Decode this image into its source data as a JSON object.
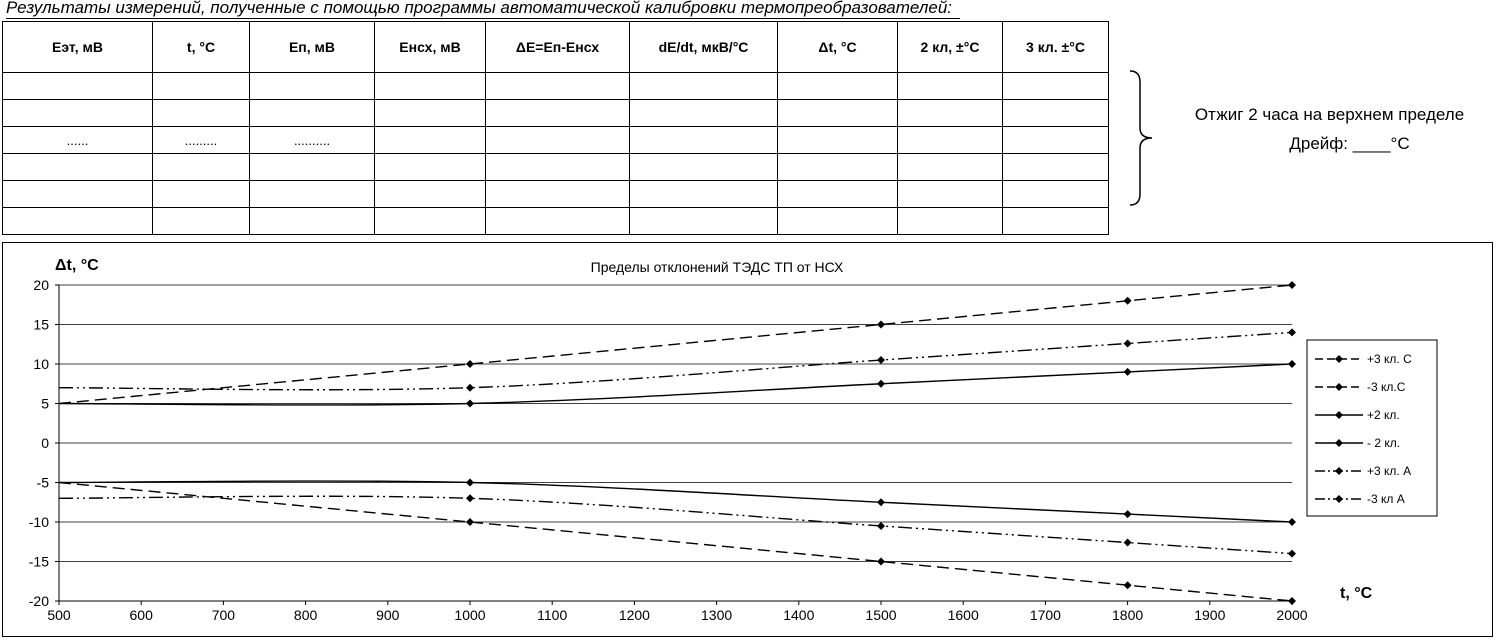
{
  "caption": "Результаты измерений, полученные с помощью программы автоматической калибровки термопреобразователей:",
  "table": {
    "headers": [
      "Еэт, мВ",
      "t, °С",
      "Еп, мВ",
      "Енсх, мВ",
      "ΔЕ=Еп-Енсх",
      "dE/dt, мкВ/°С",
      "Δt, °С",
      "2 кл, ±°С",
      "3 кл. ±°С"
    ],
    "rows": [
      [
        "",
        "",
        "",
        "",
        "",
        "",
        "",
        "",
        ""
      ],
      [
        "",
        "",
        "",
        "",
        "",
        "",
        "",
        "",
        ""
      ],
      [
        "......",
        ".........",
        "..........",
        "",
        "",
        "",
        "",
        "",
        ""
      ],
      [
        "",
        "",
        "",
        "",
        "",
        "",
        "",
        "",
        ""
      ],
      [
        "",
        "",
        "",
        "",
        "",
        "",
        "",
        "",
        ""
      ],
      [
        "",
        "",
        "",
        "",
        "",
        "",
        "",
        "",
        ""
      ]
    ]
  },
  "note": {
    "line1": "Отжиг 2 часа на верхнем пределе",
    "line2": "Дрейф: ____°С"
  },
  "chart_data": {
    "type": "line",
    "title": "Пределы отклонений ТЭДС ТП от НСХ",
    "xlabel": "t, °С",
    "ylabel": "Δt, °С",
    "xlim": [
      500,
      2000
    ],
    "ylim": [
      -20,
      20
    ],
    "xticks": [
      500,
      600,
      700,
      800,
      900,
      1000,
      1100,
      1200,
      1300,
      1400,
      1500,
      1600,
      1700,
      1800,
      1900,
      2000
    ],
    "yticks": [
      20,
      15,
      10,
      5,
      0,
      -5,
      -10,
      -15,
      -20
    ],
    "grid": "horizontal",
    "legend_position": "right",
    "series": [
      {
        "name": "+3 кл. С",
        "style": "dash",
        "x": [
          500,
          1000,
          1500,
          1800,
          2000
        ],
        "y": [
          5,
          10,
          15,
          18,
          20
        ]
      },
      {
        "name": "-3 кл.С",
        "style": "dash",
        "x": [
          500,
          1000,
          1500,
          1800,
          2000
        ],
        "y": [
          -5,
          -10,
          -15,
          -18,
          -20
        ]
      },
      {
        "name": "+2 кл.",
        "style": "solid",
        "x": [
          500,
          1000,
          1500,
          1800,
          2000
        ],
        "y": [
          5,
          5,
          7.5,
          9,
          10
        ]
      },
      {
        "name": "- 2 кл.",
        "style": "solid",
        "x": [
          500,
          1000,
          1500,
          1800,
          2000
        ],
        "y": [
          -5,
          -5,
          -7.5,
          -9,
          -10
        ]
      },
      {
        "name": "+3 кл. А",
        "style": "dashdotdot",
        "x": [
          500,
          1000,
          1500,
          1800,
          2000
        ],
        "y": [
          7,
          7,
          10.5,
          12.6,
          14
        ]
      },
      {
        "name": "-3 кл А",
        "style": "dashdotdot",
        "x": [
          500,
          1000,
          1500,
          1800,
          2000
        ],
        "y": [
          -7,
          -7,
          -10.5,
          -12.6,
          -14
        ]
      }
    ]
  }
}
